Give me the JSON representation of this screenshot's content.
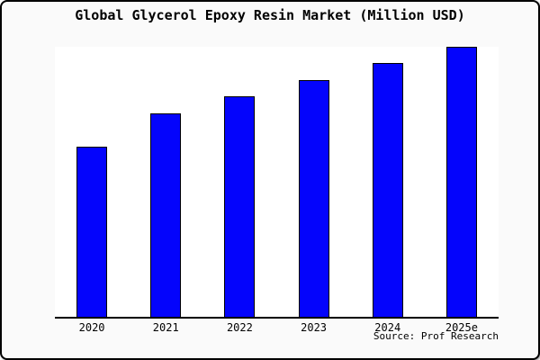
{
  "title": "Global Glycerol Epoxy Resin Market (Million USD)",
  "source": "Source: Prof Research",
  "colors": {
    "bar_fill": "#0404fc",
    "bar_border": "#000000",
    "window_bg": "#fafafa",
    "plot_bg": "#ffffff",
    "axis_line": "#000000",
    "text": "#000000"
  },
  "chart_data": {
    "type": "bar",
    "title": "Global Glycerol Epoxy Resin Market (Million USD)",
    "categories": [
      "2020",
      "2021",
      "2022",
      "2023",
      "2024",
      "2025e"
    ],
    "values": [
      63.0,
      75.3,
      81.7,
      87.7,
      94.0,
      100.0
    ],
    "xlabel": "",
    "ylabel": "",
    "ylim": [
      0,
      100
    ],
    "grid": false,
    "legend": false,
    "y_axis_labels_visible": false,
    "value_note": "y-axis is unlabeled in the chart; values are relative bar heights scaled so 2025e = 100",
    "source_annotation": "Source: Prof Research"
  }
}
